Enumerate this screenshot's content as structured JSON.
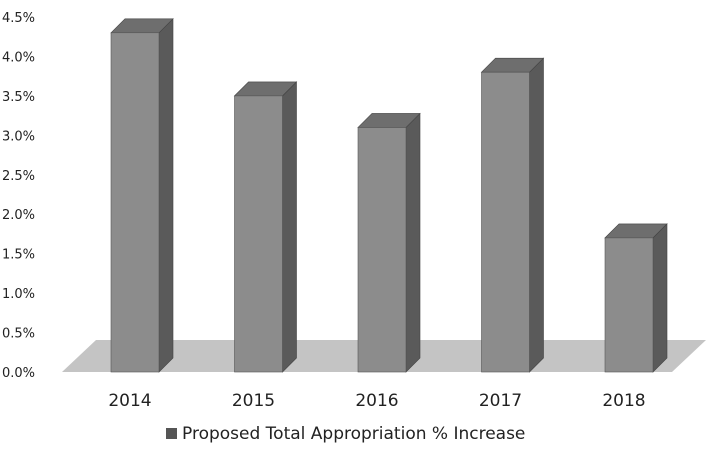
{
  "chart_data": {
    "type": "bar",
    "style": "3d-column",
    "categories": [
      "2014",
      "2015",
      "2016",
      "2017",
      "2018"
    ],
    "series": [
      {
        "name": "Proposed Total Appropriation % Increase",
        "values": [
          4.3,
          3.5,
          3.1,
          3.8,
          1.7
        ],
        "color": "#8c8c8c"
      }
    ],
    "y_ticks": [
      "0.0%",
      "0.5%",
      "1.0%",
      "1.5%",
      "2.0%",
      "2.5%",
      "3.0%",
      "3.5%",
      "4.0%",
      "4.5%"
    ],
    "ylim": [
      0,
      4.5
    ],
    "grid": false,
    "legend_position": "bottom"
  },
  "colors": {
    "bar_front": "#8c8c8c",
    "bar_top": "#6e6e6e",
    "bar_side": "#5a5a5a",
    "floor": "#c4c4c4",
    "legend_marker": "#555555"
  }
}
